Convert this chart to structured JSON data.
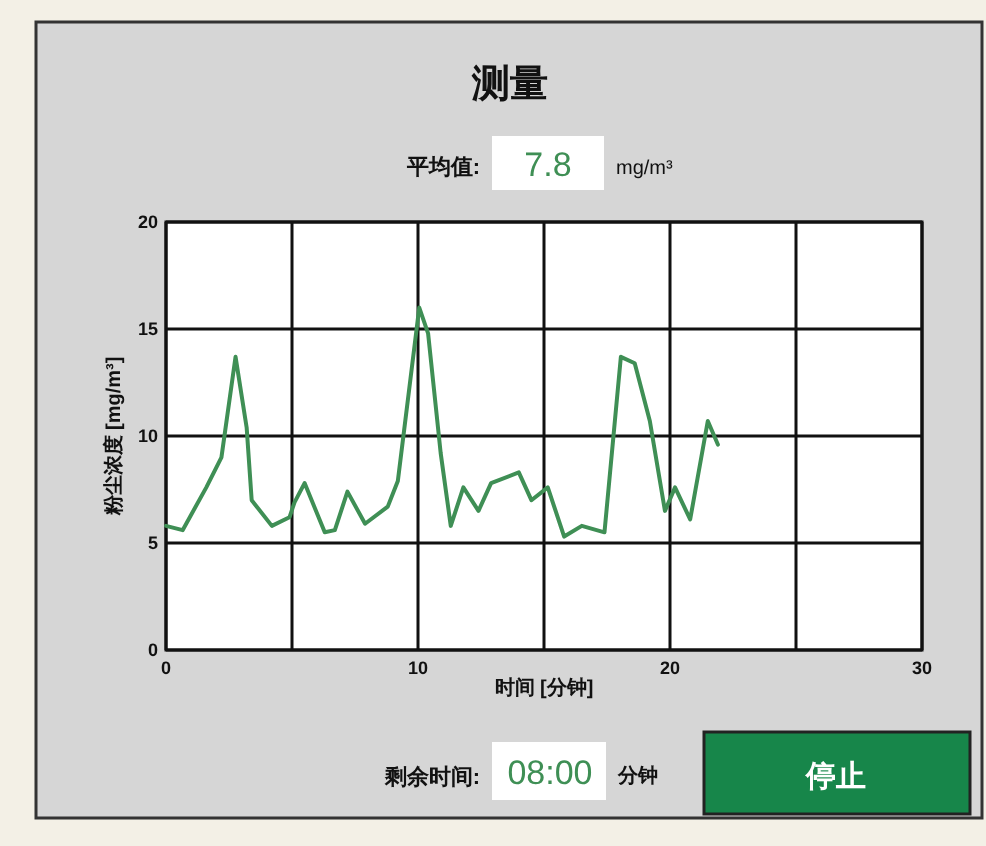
{
  "chart_data": {
    "type": "line",
    "title": "测量",
    "xlabel": "时间 [分钟]",
    "ylabel": "粉尘浓度 [mg/m³]",
    "annotations": [
      "平均值:",
      "7.8",
      "mg/m³",
      "剩余时间:",
      "08:00",
      "分钟",
      "停止"
    ],
    "xlim": [
      0,
      30
    ],
    "ylim": [
      0,
      20
    ],
    "xticks": [
      0,
      {
        "value": 5,
        "label": null
      },
      10,
      {
        "value": 15,
        "label": null
      },
      20,
      {
        "value": 25,
        "label": null
      },
      30
    ],
    "yticks": [
      0,
      5,
      10,
      15,
      20
    ],
    "grid": true,
    "series": [
      {
        "color": "#3f8f55",
        "x": [
          0,
          0.66,
          1.6,
          2.2,
          2.76,
          3.2,
          3.4,
          4.2,
          4.9,
          5.1,
          5.5,
          6.3,
          6.7,
          7.2,
          7.9,
          8.8,
          9.2,
          9.6,
          10.05,
          10.4,
          10.9,
          11.3,
          11.8,
          12.4,
          12.9,
          14.0,
          14.5,
          15.15,
          15.8,
          16.5,
          17.4,
          18.05,
          18.6,
          19.2,
          19.8,
          20.2,
          20.8,
          21.5,
          21.9
        ],
        "values": [
          5.8,
          5.6,
          7.6,
          9.0,
          13.7,
          10.4,
          7.0,
          5.8,
          6.2,
          6.9,
          7.8,
          5.5,
          5.6,
          7.4,
          5.9,
          6.7,
          7.9,
          11.7,
          16.0,
          14.8,
          9.2,
          5.8,
          7.6,
          6.5,
          7.8,
          8.3,
          7.0,
          7.6,
          5.3,
          5.8,
          5.5,
          13.7,
          13.4,
          10.7,
          6.5,
          7.6,
          6.1,
          10.7,
          9.6
        ]
      }
    ]
  }
}
